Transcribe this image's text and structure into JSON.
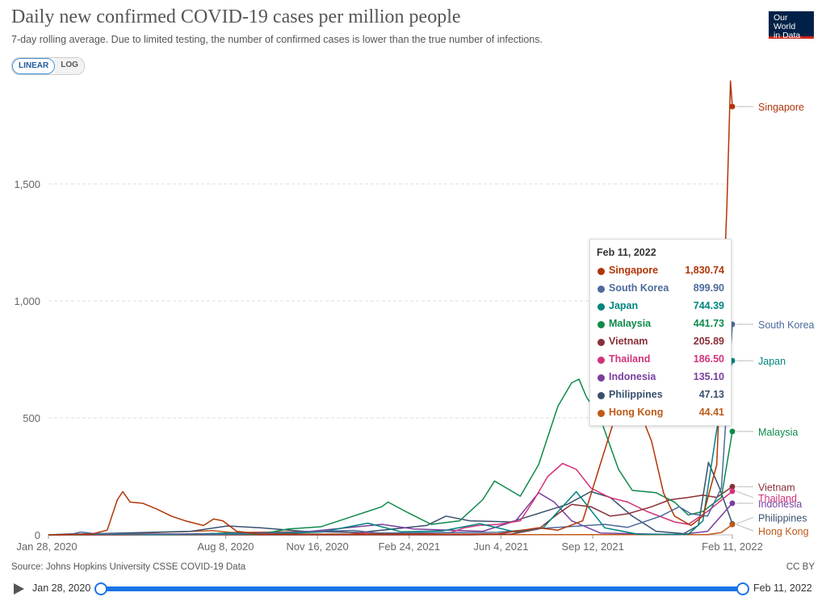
{
  "header": {
    "title": "Daily new confirmed COVID-19 cases per million people",
    "subtitle": "7-day rolling average. Due to limited testing, the number of confirmed cases is lower than the true number of infections.",
    "logo_line1": "Our World",
    "logo_line2": "in Data"
  },
  "controls": {
    "linear_label": "LINEAR",
    "log_label": "LOG",
    "selected": "LINEAR"
  },
  "footer": {
    "source": "Source: Johns Hopkins University CSSE COVID-19 Data",
    "license": "CC BY"
  },
  "timeline": {
    "start_label": "Jan 28, 2020",
    "end_label": "Feb 11, 2022",
    "accent": "#1a73e8"
  },
  "tooltip": {
    "date": "Feb 11, 2022",
    "rows": [
      {
        "name": "Singapore",
        "value": "1,830.74",
        "color": "#b13507"
      },
      {
        "name": "South Korea",
        "value": "899.90",
        "color": "#4c6a9c"
      },
      {
        "name": "Japan",
        "value": "744.39",
        "color": "#00847e"
      },
      {
        "name": "Malaysia",
        "value": "441.73",
        "color": "#0e8a4a"
      },
      {
        "name": "Vietnam",
        "value": "205.89",
        "color": "#883039"
      },
      {
        "name": "Thailand",
        "value": "186.50",
        "color": "#d1337a"
      },
      {
        "name": "Indonesia",
        "value": "135.10",
        "color": "#7a3e9e"
      },
      {
        "name": "Philippines",
        "value": "47.13",
        "color": "#38506e"
      },
      {
        "name": "Hong Kong",
        "value": "44.41",
        "color": "#c05917"
      }
    ]
  },
  "chart_data": {
    "type": "line",
    "title": "Daily new confirmed COVID-19 cases per million people",
    "xlabel": "",
    "ylabel": "",
    "ylim": [
      0,
      2000
    ],
    "xlim": [
      "2020-01-28",
      "2022-02-11"
    ],
    "x_ticks": [
      "Jan 28, 2020",
      "Aug 8, 2020",
      "Nov 16, 2020",
      "Feb 24, 2021",
      "Jun 4, 2021",
      "Sep 12, 2021",
      "Feb 11, 2022"
    ],
    "y_ticks": [
      0,
      500,
      1000,
      1500
    ],
    "y_tick_labels": [
      "0",
      "500",
      "1,000",
      "1,500"
    ],
    "grid": "horizontal dashed",
    "series": [
      {
        "name": "Singapore",
        "color": "#b13507",
        "end_label_offset": 0,
        "points": [
          [
            "2020-01-28",
            0
          ],
          [
            "2020-03-15",
            3
          ],
          [
            "2020-04-01",
            20
          ],
          [
            "2020-04-12",
            150
          ],
          [
            "2020-04-18",
            185
          ],
          [
            "2020-04-26",
            140
          ],
          [
            "2020-05-10",
            135
          ],
          [
            "2020-05-25",
            110
          ],
          [
            "2020-06-10",
            80
          ],
          [
            "2020-06-25",
            60
          ],
          [
            "2020-07-15",
            40
          ],
          [
            "2020-07-26",
            68
          ],
          [
            "2020-08-05",
            60
          ],
          [
            "2020-08-20",
            15
          ],
          [
            "2020-09-15",
            3
          ],
          [
            "2021-05-01",
            3
          ],
          [
            "2021-06-01",
            4
          ],
          [
            "2021-07-15",
            30
          ],
          [
            "2021-08-05",
            20
          ],
          [
            "2021-09-01",
            60
          ],
          [
            "2021-09-20",
            300
          ],
          [
            "2021-10-10",
            550
          ],
          [
            "2021-10-25",
            610
          ],
          [
            "2021-11-15",
            400
          ],
          [
            "2021-11-28",
            180
          ],
          [
            "2021-12-10",
            80
          ],
          [
            "2021-12-28",
            40
          ],
          [
            "2022-01-10",
            80
          ],
          [
            "2022-01-25",
            300
          ],
          [
            "2022-02-05",
            1400
          ],
          [
            "2022-02-09",
            1940
          ],
          [
            "2022-02-11",
            1830.74
          ]
        ]
      },
      {
        "name": "South Korea",
        "color": "#4c6a9c",
        "end_label_offset": 0,
        "points": [
          [
            "2020-01-28",
            0
          ],
          [
            "2020-02-25",
            5
          ],
          [
            "2020-03-03",
            12
          ],
          [
            "2020-03-20",
            4
          ],
          [
            "2020-08-01",
            2
          ],
          [
            "2020-08-28",
            5
          ],
          [
            "2020-12-25",
            19
          ],
          [
            "2021-01-20",
            8
          ],
          [
            "2021-06-01",
            11
          ],
          [
            "2021-07-20",
            28
          ],
          [
            "2021-09-25",
            45
          ],
          [
            "2021-10-20",
            32
          ],
          [
            "2021-11-25",
            80
          ],
          [
            "2021-12-15",
            120
          ],
          [
            "2021-12-28",
            90
          ],
          [
            "2022-01-15",
            80
          ],
          [
            "2022-01-30",
            200
          ],
          [
            "2022-02-11",
            899.9
          ]
        ]
      },
      {
        "name": "Japan",
        "color": "#00847e",
        "end_label_offset": 0,
        "points": [
          [
            "2020-01-28",
            0
          ],
          [
            "2020-04-12",
            4
          ],
          [
            "2020-05-20",
            1
          ],
          [
            "2020-07-20",
            4
          ],
          [
            "2020-08-08",
            8
          ],
          [
            "2020-10-01",
            4
          ],
          [
            "2020-11-20",
            12
          ],
          [
            "2021-01-10",
            50
          ],
          [
            "2021-02-15",
            13
          ],
          [
            "2021-04-01",
            17
          ],
          [
            "2021-05-12",
            48
          ],
          [
            "2021-06-20",
            12
          ],
          [
            "2021-07-20",
            30
          ],
          [
            "2021-08-25",
            185
          ],
          [
            "2021-09-25",
            30
          ],
          [
            "2021-11-01",
            2
          ],
          [
            "2021-12-25",
            2
          ],
          [
            "2022-01-10",
            60
          ],
          [
            "2022-01-25",
            450
          ],
          [
            "2022-02-11",
            744.39
          ]
        ]
      },
      {
        "name": "Malaysia",
        "color": "#0e8a4a",
        "end_label_offset": 0,
        "points": [
          [
            "2020-01-28",
            0
          ],
          [
            "2020-03-20",
            3
          ],
          [
            "2020-06-01",
            1
          ],
          [
            "2020-09-15",
            3
          ],
          [
            "2020-10-15",
            25
          ],
          [
            "2020-11-20",
            35
          ],
          [
            "2020-12-25",
            80
          ],
          [
            "2021-01-25",
            120
          ],
          [
            "2021-02-01",
            140
          ],
          [
            "2021-02-20",
            100
          ],
          [
            "2021-03-20",
            45
          ],
          [
            "2021-04-20",
            60
          ],
          [
            "2021-05-15",
            150
          ],
          [
            "2021-05-28",
            230
          ],
          [
            "2021-06-10",
            200
          ],
          [
            "2021-06-25",
            165
          ],
          [
            "2021-07-15",
            300
          ],
          [
            "2021-08-05",
            550
          ],
          [
            "2021-08-20",
            650
          ],
          [
            "2021-08-28",
            665
          ],
          [
            "2021-09-05",
            590
          ],
          [
            "2021-09-20",
            500
          ],
          [
            "2021-10-10",
            280
          ],
          [
            "2021-10-25",
            190
          ],
          [
            "2021-11-20",
            180
          ],
          [
            "2021-12-10",
            140
          ],
          [
            "2021-12-25",
            85
          ],
          [
            "2022-01-10",
            100
          ],
          [
            "2022-01-30",
            160
          ],
          [
            "2022-02-11",
            441.73
          ]
        ]
      },
      {
        "name": "Vietnam",
        "color": "#883039",
        "end_label_offset": 0,
        "points": [
          [
            "2020-01-28",
            0
          ],
          [
            "2021-05-01",
            0
          ],
          [
            "2021-06-15",
            3
          ],
          [
            "2021-07-15",
            25
          ],
          [
            "2021-08-05",
            90
          ],
          [
            "2021-08-20",
            130
          ],
          [
            "2021-09-10",
            120
          ],
          [
            "2021-10-01",
            80
          ],
          [
            "2021-10-20",
            90
          ],
          [
            "2021-11-15",
            120
          ],
          [
            "2021-12-05",
            150
          ],
          [
            "2021-12-25",
            160
          ],
          [
            "2022-01-10",
            170
          ],
          [
            "2022-01-25",
            160
          ],
          [
            "2022-02-11",
            205.89
          ]
        ]
      },
      {
        "name": "Thailand",
        "color": "#d1337a",
        "end_label_offset": 8,
        "points": [
          [
            "2020-01-28",
            0
          ],
          [
            "2020-12-20",
            2
          ],
          [
            "2021-01-10",
            10
          ],
          [
            "2021-02-10",
            5
          ],
          [
            "2021-04-10",
            10
          ],
          [
            "2021-04-25",
            30
          ],
          [
            "2021-05-10",
            40
          ],
          [
            "2021-06-01",
            45
          ],
          [
            "2021-06-25",
            60
          ],
          [
            "2021-07-10",
            150
          ],
          [
            "2021-07-25",
            250
          ],
          [
            "2021-08-10",
            305
          ],
          [
            "2021-08-25",
            280
          ],
          [
            "2021-09-10",
            200
          ],
          [
            "2021-09-30",
            160
          ],
          [
            "2021-10-20",
            140
          ],
          [
            "2021-11-10",
            100
          ],
          [
            "2021-12-10",
            55
          ],
          [
            "2021-12-25",
            45
          ],
          [
            "2022-01-15",
            100
          ],
          [
            "2022-02-11",
            186.5
          ]
        ]
      },
      {
        "name": "Indonesia",
        "color": "#7a3e9e",
        "end_label_offset": 0,
        "points": [
          [
            "2020-01-28",
            0
          ],
          [
            "2020-07-01",
            4
          ],
          [
            "2020-11-01",
            12
          ],
          [
            "2021-01-25",
            45
          ],
          [
            "2021-03-01",
            25
          ],
          [
            "2021-05-15",
            15
          ],
          [
            "2021-06-20",
            60
          ],
          [
            "2021-07-15",
            180
          ],
          [
            "2021-08-01",
            140
          ],
          [
            "2021-08-20",
            60
          ],
          [
            "2021-09-20",
            8
          ],
          [
            "2021-12-15",
            1
          ],
          [
            "2022-01-15",
            15
          ],
          [
            "2022-02-11",
            135.1
          ]
        ]
      },
      {
        "name": "Philippines",
        "color": "#38506e",
        "end_label_offset": -8,
        "points": [
          [
            "2020-01-28",
            0
          ],
          [
            "2020-07-01",
            15
          ],
          [
            "2020-08-10",
            38
          ],
          [
            "2020-09-15",
            30
          ],
          [
            "2020-11-01",
            15
          ],
          [
            "2021-01-01",
            10
          ],
          [
            "2021-03-15",
            40
          ],
          [
            "2021-04-05",
            80
          ],
          [
            "2021-05-01",
            60
          ],
          [
            "2021-06-15",
            55
          ],
          [
            "2021-08-15",
            130
          ],
          [
            "2021-09-10",
            185
          ],
          [
            "2021-10-01",
            160
          ],
          [
            "2021-10-25",
            80
          ],
          [
            "2021-11-20",
            15
          ],
          [
            "2021-12-20",
            5
          ],
          [
            "2022-01-05",
            40
          ],
          [
            "2022-01-16",
            310
          ],
          [
            "2022-01-28",
            200
          ],
          [
            "2022-02-11",
            47.13
          ]
        ]
      },
      {
        "name": "Hong Kong",
        "color": "#c05917",
        "end_label_offset": 8,
        "points": [
          [
            "2020-01-28",
            0
          ],
          [
            "2020-04-01",
            3
          ],
          [
            "2020-07-25",
            18
          ],
          [
            "2020-08-15",
            10
          ],
          [
            "2020-12-01",
            15
          ],
          [
            "2020-12-28",
            10
          ],
          [
            "2021-03-01",
            3
          ],
          [
            "2021-06-01",
            1
          ],
          [
            "2022-01-15",
            1
          ],
          [
            "2022-01-30",
            10
          ],
          [
            "2022-02-11",
            44.41
          ]
        ]
      }
    ]
  }
}
